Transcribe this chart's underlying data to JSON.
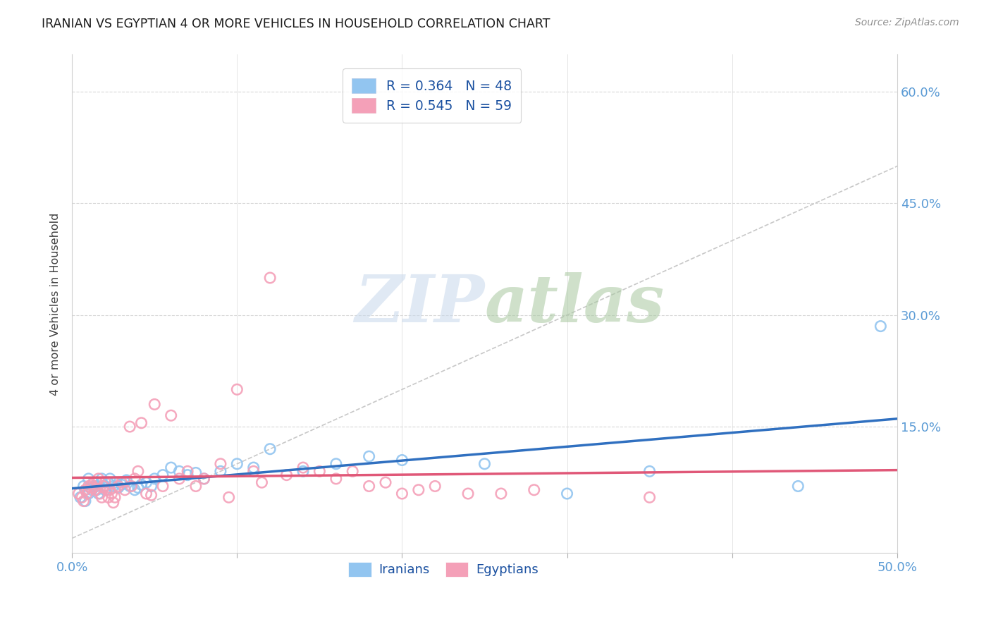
{
  "title": "IRANIAN VS EGYPTIAN 4 OR MORE VEHICLES IN HOUSEHOLD CORRELATION CHART",
  "source": "Source: ZipAtlas.com",
  "ylabel": "4 or more Vehicles in Household",
  "ytick_values": [
    0.0,
    0.15,
    0.3,
    0.45,
    0.6
  ],
  "xlim": [
    0.0,
    0.5
  ],
  "ylim": [
    -0.02,
    0.65
  ],
  "legend_iranian_R": "R = 0.364",
  "legend_iranian_N": "N = 48",
  "legend_egyptian_R": "R = 0.545",
  "legend_egyptian_N": "N = 59",
  "iranian_color": "#92C5F0",
  "egyptian_color": "#F4A0B8",
  "iranian_line_color": "#3070C0",
  "egyptian_line_color": "#E05878",
  "diagonal_color": "#C8C8C8",
  "watermark_zip": "ZIP",
  "watermark_atlas": "atlas",
  "iranians_label": "Iranians",
  "egyptians_label": "Egyptians",
  "iranians_x": [
    0.005,
    0.007,
    0.008,
    0.01,
    0.01,
    0.012,
    0.013,
    0.015,
    0.015,
    0.016,
    0.018,
    0.018,
    0.02,
    0.02,
    0.022,
    0.023,
    0.025,
    0.026,
    0.028,
    0.03,
    0.032,
    0.033,
    0.035,
    0.038,
    0.04,
    0.042,
    0.045,
    0.048,
    0.05,
    0.055,
    0.06,
    0.065,
    0.07,
    0.075,
    0.08,
    0.09,
    0.1,
    0.11,
    0.12,
    0.14,
    0.16,
    0.18,
    0.2,
    0.25,
    0.3,
    0.35,
    0.44,
    0.49
  ],
  "iranians_y": [
    0.055,
    0.07,
    0.05,
    0.08,
    0.06,
    0.065,
    0.075,
    0.07,
    0.065,
    0.06,
    0.075,
    0.08,
    0.07,
    0.065,
    0.075,
    0.08,
    0.07,
    0.075,
    0.068,
    0.072,
    0.075,
    0.078,
    0.07,
    0.065,
    0.068,
    0.072,
    0.075,
    0.07,
    0.08,
    0.085,
    0.095,
    0.09,
    0.085,
    0.088,
    0.08,
    0.09,
    0.1,
    0.095,
    0.12,
    0.09,
    0.1,
    0.11,
    0.105,
    0.1,
    0.06,
    0.09,
    0.07,
    0.285
  ],
  "egyptians_x": [
    0.004,
    0.006,
    0.007,
    0.008,
    0.009,
    0.01,
    0.011,
    0.012,
    0.013,
    0.014,
    0.015,
    0.016,
    0.017,
    0.018,
    0.019,
    0.02,
    0.021,
    0.022,
    0.023,
    0.024,
    0.025,
    0.026,
    0.028,
    0.03,
    0.032,
    0.035,
    0.036,
    0.038,
    0.04,
    0.042,
    0.045,
    0.048,
    0.05,
    0.055,
    0.06,
    0.065,
    0.07,
    0.075,
    0.08,
    0.09,
    0.095,
    0.1,
    0.11,
    0.115,
    0.12,
    0.13,
    0.14,
    0.15,
    0.16,
    0.17,
    0.18,
    0.19,
    0.2,
    0.21,
    0.22,
    0.24,
    0.26,
    0.28,
    0.35
  ],
  "egyptians_y": [
    0.06,
    0.055,
    0.05,
    0.065,
    0.06,
    0.07,
    0.068,
    0.072,
    0.068,
    0.065,
    0.075,
    0.08,
    0.06,
    0.055,
    0.07,
    0.075,
    0.065,
    0.055,
    0.065,
    0.06,
    0.048,
    0.055,
    0.07,
    0.075,
    0.065,
    0.15,
    0.07,
    0.08,
    0.09,
    0.155,
    0.06,
    0.058,
    0.18,
    0.07,
    0.165,
    0.08,
    0.09,
    0.07,
    0.08,
    0.1,
    0.055,
    0.2,
    0.09,
    0.075,
    0.35,
    0.085,
    0.095,
    0.09,
    0.08,
    0.09,
    0.07,
    0.075,
    0.06,
    0.065,
    0.07,
    0.06,
    0.06,
    0.065,
    0.055
  ]
}
